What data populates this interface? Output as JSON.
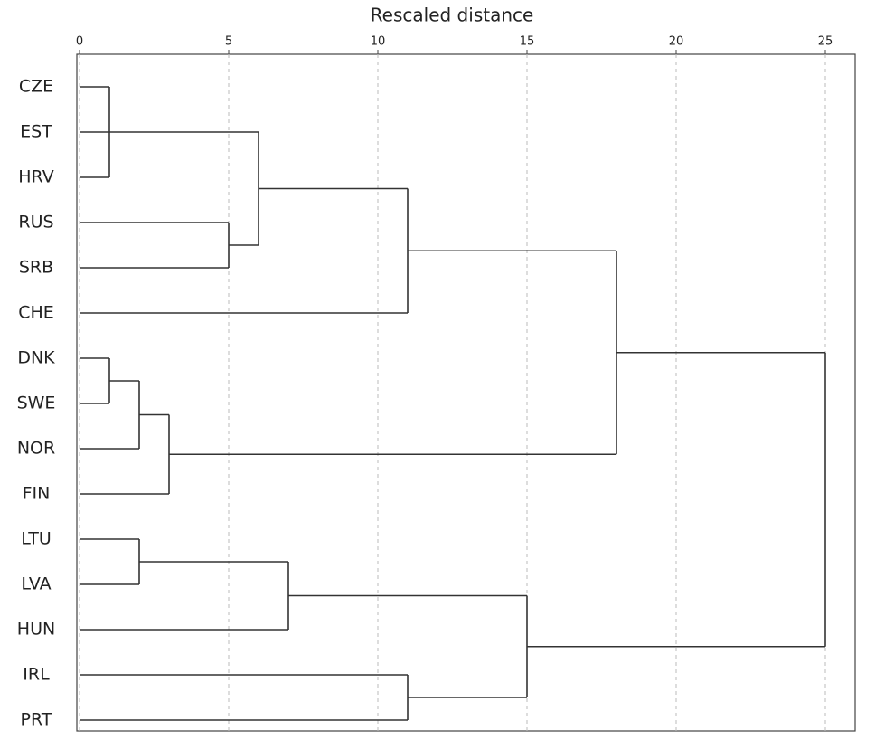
{
  "chart_data": {
    "type": "dendrogram",
    "title": "Rescaled distance",
    "xlim": [
      0,
      26
    ],
    "xticks": [
      0,
      5,
      10,
      15,
      20,
      25
    ],
    "grid": true,
    "color": "#333333",
    "tree": {
      "height": 25,
      "children": [
        {
          "height": 18,
          "children": [
            {
              "height": 11,
              "children": [
                {
                  "height": 6,
                  "children": [
                    {
                      "height": 1,
                      "children": [
                        "CZE",
                        "EST",
                        "HRV"
                      ]
                    },
                    {
                      "height": 5,
                      "children": [
                        "RUS",
                        "SRB"
                      ]
                    }
                  ]
                },
                "CHE"
              ]
            },
            {
              "height": 3,
              "children": [
                {
                  "height": 2,
                  "children": [
                    {
                      "height": 1,
                      "children": [
                        "DNK",
                        "SWE"
                      ]
                    },
                    "NOR"
                  ]
                },
                "FIN"
              ]
            }
          ]
        },
        {
          "height": 15,
          "children": [
            {
              "height": 7,
              "children": [
                {
                  "height": 2,
                  "children": [
                    "LTU",
                    "LVA"
                  ]
                },
                "HUN"
              ]
            },
            {
              "height": 11,
              "children": [
                "IRL",
                "PRT"
              ]
            }
          ]
        }
      ]
    }
  }
}
